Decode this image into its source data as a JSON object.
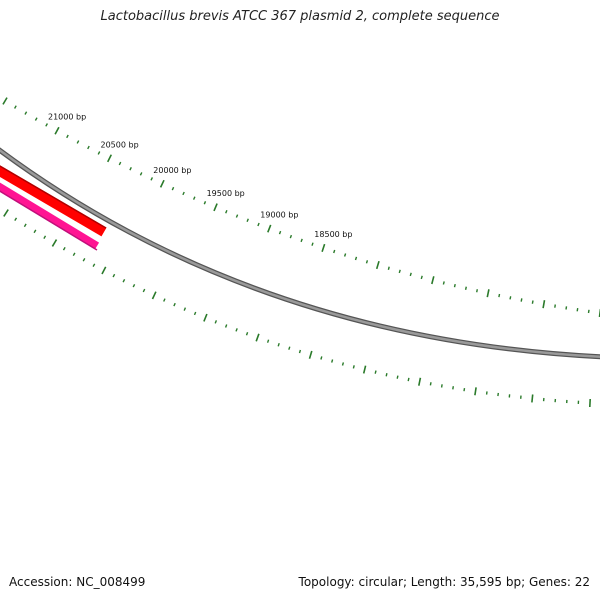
{
  "title": "Lactobacillus brevis ATCC 367 plasmid 2, complete sequence",
  "accession": "Accession: NC_008499",
  "summary": "Topology: circular; Length: 35,595 bp; Genes: 22",
  "scale_labels": [
    "21000 bp",
    "20500 bp",
    "20000 bp",
    "19500 bp",
    "19000 bp",
    "18500 bp"
  ],
  "colors": {
    "backbone": "#888888",
    "gene_forward": "#ff0000",
    "gene_reverse": "#ff1493",
    "ticks": "#2a7a2a"
  }
}
